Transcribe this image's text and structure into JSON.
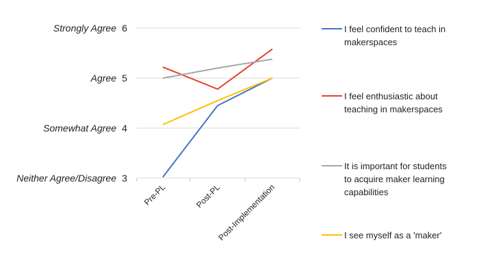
{
  "chart_data": {
    "type": "line",
    "title": "",
    "xlabel": "",
    "ylabel": "",
    "categories": [
      "Pre-PL",
      "Post-PL",
      "Post-Implementation"
    ],
    "ylim": [
      3,
      6
    ],
    "y_ticks": [
      {
        "value": 6,
        "label": "Strongly Agree",
        "number": "6"
      },
      {
        "value": 5,
        "label": "Agree",
        "number": "5"
      },
      {
        "value": 4,
        "label": "Somewhat Agree",
        "number": "4"
      },
      {
        "value": 3,
        "label": "Neither Agree/Disagree",
        "number": "3"
      }
    ],
    "grid": true,
    "legend_position": "right",
    "series": [
      {
        "name": "I feel confident to teach in makerspaces",
        "color": "#4472C4",
        "values": [
          3.02,
          4.45,
          5.0
        ]
      },
      {
        "name": "I feel enthusiastic about teaching in makerspaces",
        "color": "#E0442A",
        "values": [
          5.22,
          4.78,
          5.58
        ]
      },
      {
        "name": "It is important for students to acquire maker learning capabilities",
        "color": "#A5A5A5",
        "values": [
          5.0,
          5.2,
          5.38
        ]
      },
      {
        "name": "I see myself as a 'maker'",
        "color": "#FFC000",
        "values": [
          4.07,
          4.55,
          5.0
        ]
      }
    ]
  }
}
